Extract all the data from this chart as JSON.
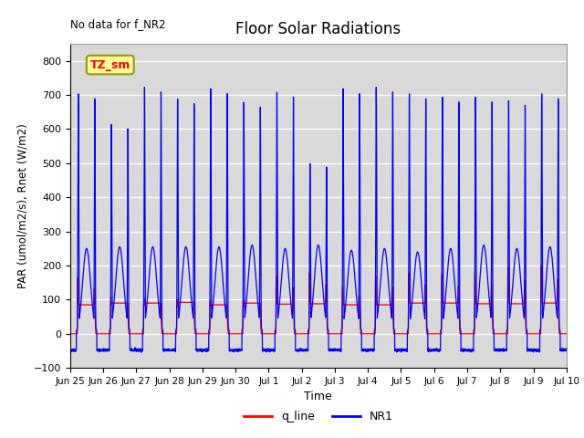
{
  "title": "Floor Solar Radiations",
  "annotation": "No data for f_NR2",
  "legend_label": "TZ_sm",
  "xlabel": "Time",
  "ylabel": "PAR (umol/m2/s), Rnet (W/m2)",
  "ylim": [
    -100,
    850
  ],
  "yticks": [
    -100,
    0,
    100,
    200,
    300,
    400,
    500,
    600,
    700,
    800
  ],
  "line1_color": "#FF0000",
  "line1_label": "q_line",
  "line2_color": "#0000FF",
  "line2_label": "NR1",
  "bg_color": "#D9D9D9",
  "legend_box_color": "#FFFF99",
  "legend_box_edge": "#999900",
  "num_days": 15,
  "xtick_labels": [
    "Jun 25",
    "Jun 26",
    "Jun 27",
    "Jun 28",
    "Jun 29",
    "Jun 30",
    "Jul 1",
    "Jul 2",
    "Jul 3",
    "Jul 4",
    "Jul 5",
    "Jul 6",
    "Jul 7",
    "Jul 8",
    "Jul 9",
    "Jul 10"
  ],
  "grid_color": "#FFFFFF",
  "grid_lw": 1.0
}
